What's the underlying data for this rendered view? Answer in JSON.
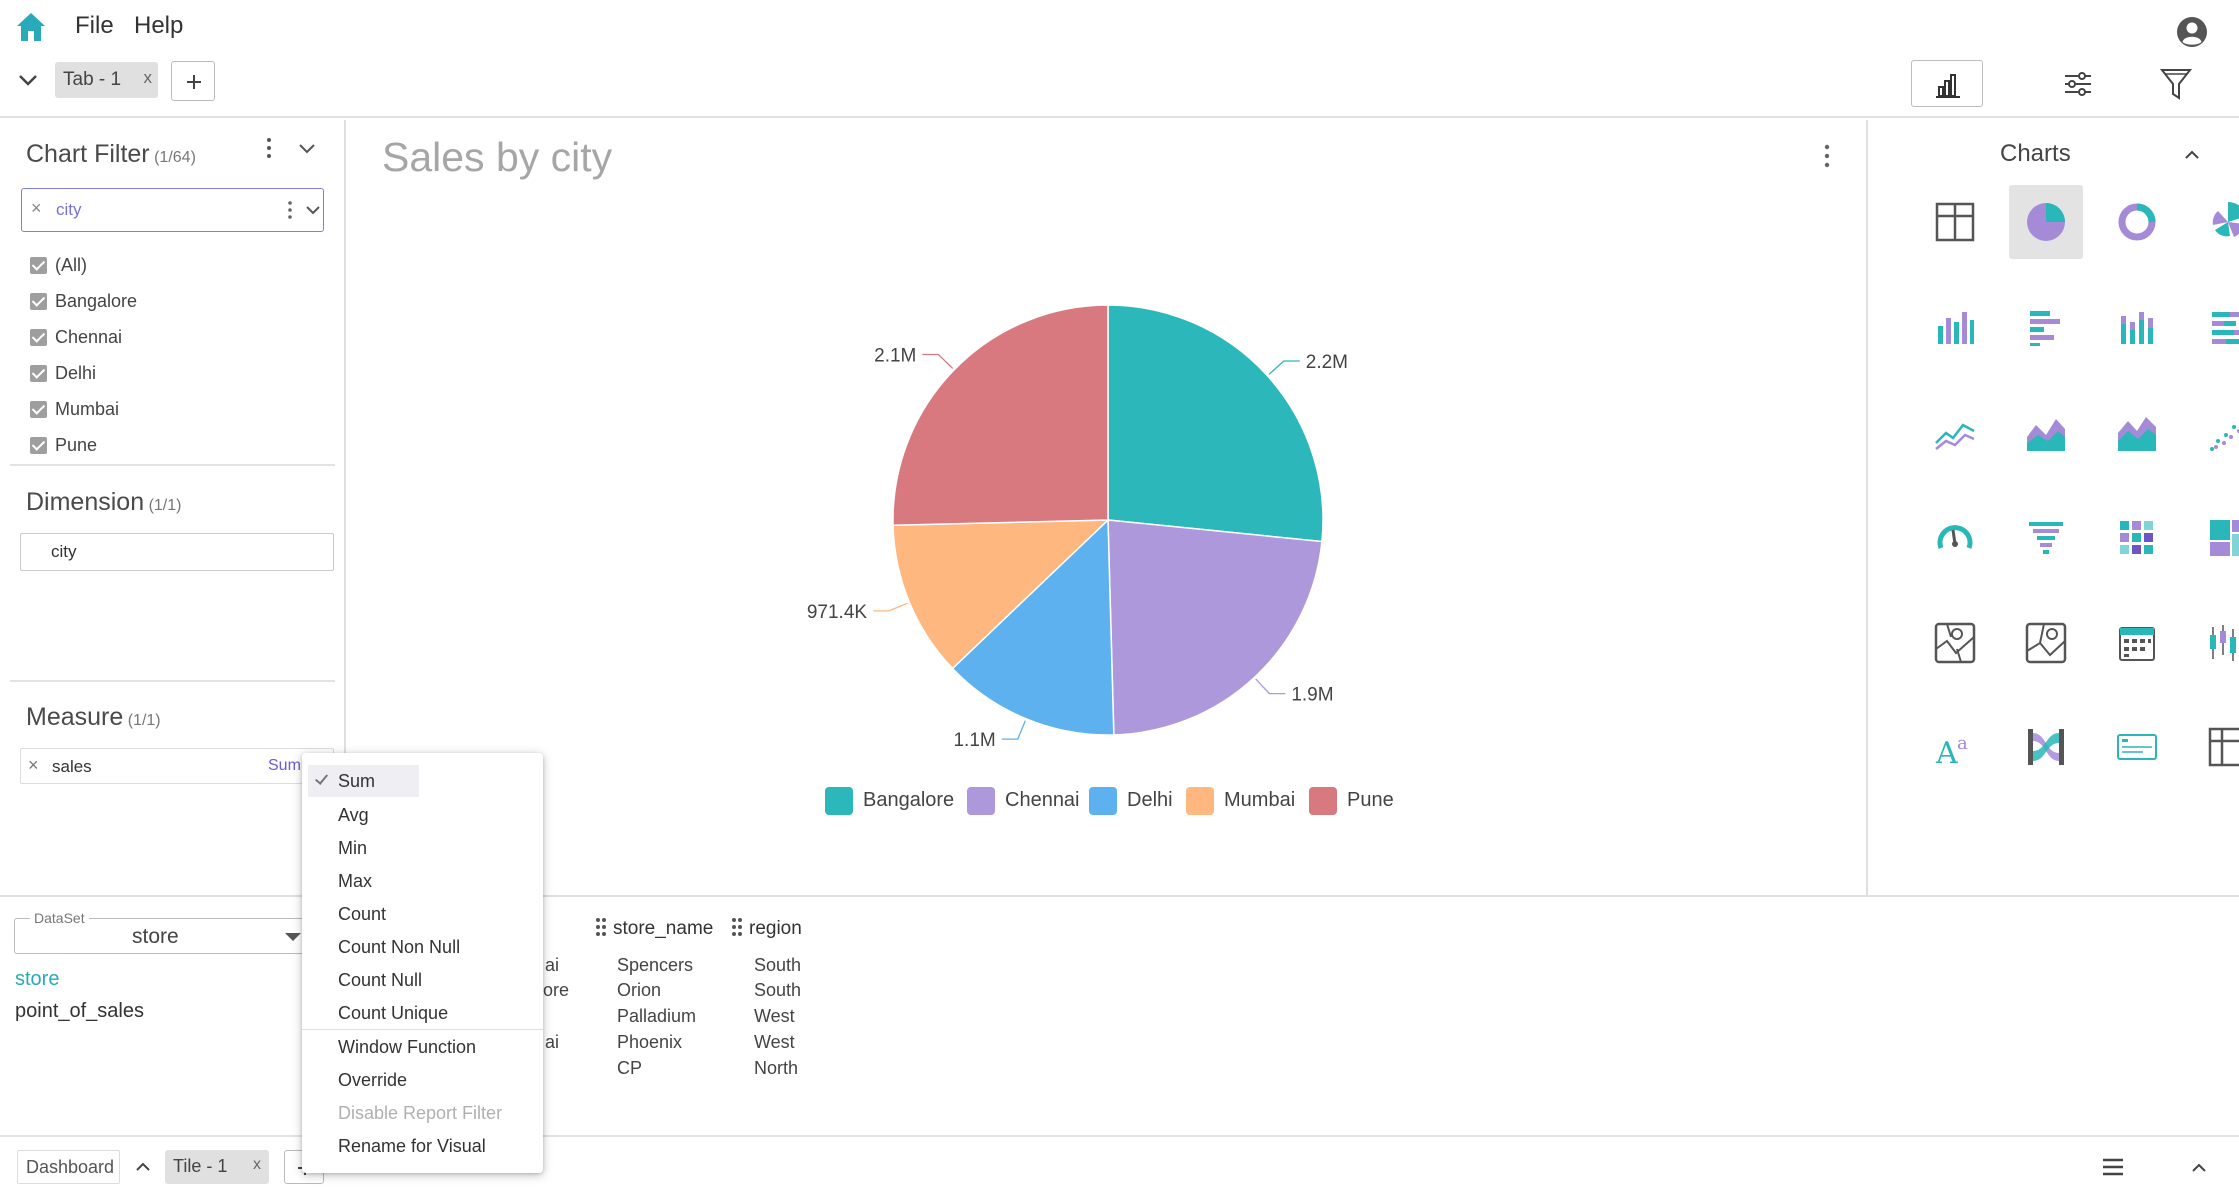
{
  "menu": {
    "file": "File",
    "help": "Help"
  },
  "tabs": [
    {
      "label": "Tab - 1",
      "close": "x"
    }
  ],
  "add_label": "+",
  "chart_filter": {
    "title": "Chart Filter",
    "count": "(1/64)",
    "field": "city",
    "clear": "×",
    "items": [
      "(All)",
      "Bangalore",
      "Chennai",
      "Delhi",
      "Mumbai",
      "Pune"
    ]
  },
  "dimension": {
    "title": "Dimension",
    "count": "(1/1)",
    "field": "city"
  },
  "measure": {
    "title": "Measure",
    "count": "(1/1)",
    "field": "sales",
    "clear": "×",
    "aggregation": "Sum"
  },
  "chart": {
    "title": "Sales by city"
  },
  "chart_data": {
    "type": "pie",
    "categories": [
      "Bangalore",
      "Chennai",
      "Delhi",
      "Mumbai",
      "Pune"
    ],
    "values": [
      2.2,
      1.9,
      1.1,
      0.9714,
      2.1
    ],
    "data_labels": [
      "2.2M",
      "1.9M",
      "1.1M",
      "971.4K",
      "2.1M"
    ],
    "colors": [
      "#2cb8ba",
      "#ae98dc",
      "#5db1ee",
      "#ffb780",
      "#d8787f"
    ],
    "legend": "bottom"
  },
  "charts_panel": {
    "title": "Charts",
    "types": [
      "table-icon",
      "pie-chart-icon",
      "donut-chart-icon",
      "rose-chart-icon",
      "bar-chart-icon",
      "horizontal-bar-icon",
      "stacked-bar-icon",
      "stacked-horizontal-bar-icon",
      "line-chart-icon",
      "area-chart-icon",
      "stacked-area-icon",
      "scatter-chart-icon",
      "gauge-icon",
      "funnel-icon",
      "heatmap-icon",
      "treemap-icon",
      "geo-map-icon",
      "geo-map-alt-icon",
      "calendar-icon",
      "candlestick-icon",
      "text-icon",
      "sankey-icon",
      "card-icon",
      "pivot-table-icon"
    ],
    "selected": 1
  },
  "dataset": {
    "legend": "DataSet",
    "value": "store",
    "items": [
      "store",
      "point_of_sales"
    ]
  },
  "table": {
    "columns": [
      "store_name",
      "region"
    ],
    "partial_col": [
      "ai",
      "lore",
      "",
      "ai",
      ""
    ],
    "rows": [
      [
        "Spencers",
        "South"
      ],
      [
        "Orion",
        "South"
      ],
      [
        "Palladium",
        "West"
      ],
      [
        "Phoenix",
        "West"
      ],
      [
        "CP",
        "North"
      ]
    ]
  },
  "footer": {
    "dashboard": "Dashboard",
    "tile": "Tile - 1",
    "tile_close": "x"
  },
  "agg_menu": {
    "items": [
      "Sum",
      "Avg",
      "Min",
      "Max",
      "Count",
      "Count Non Null",
      "Count Null",
      "Count Unique",
      "Window Function",
      "Override",
      "Disable Report Filter",
      "Rename for Visual"
    ]
  }
}
